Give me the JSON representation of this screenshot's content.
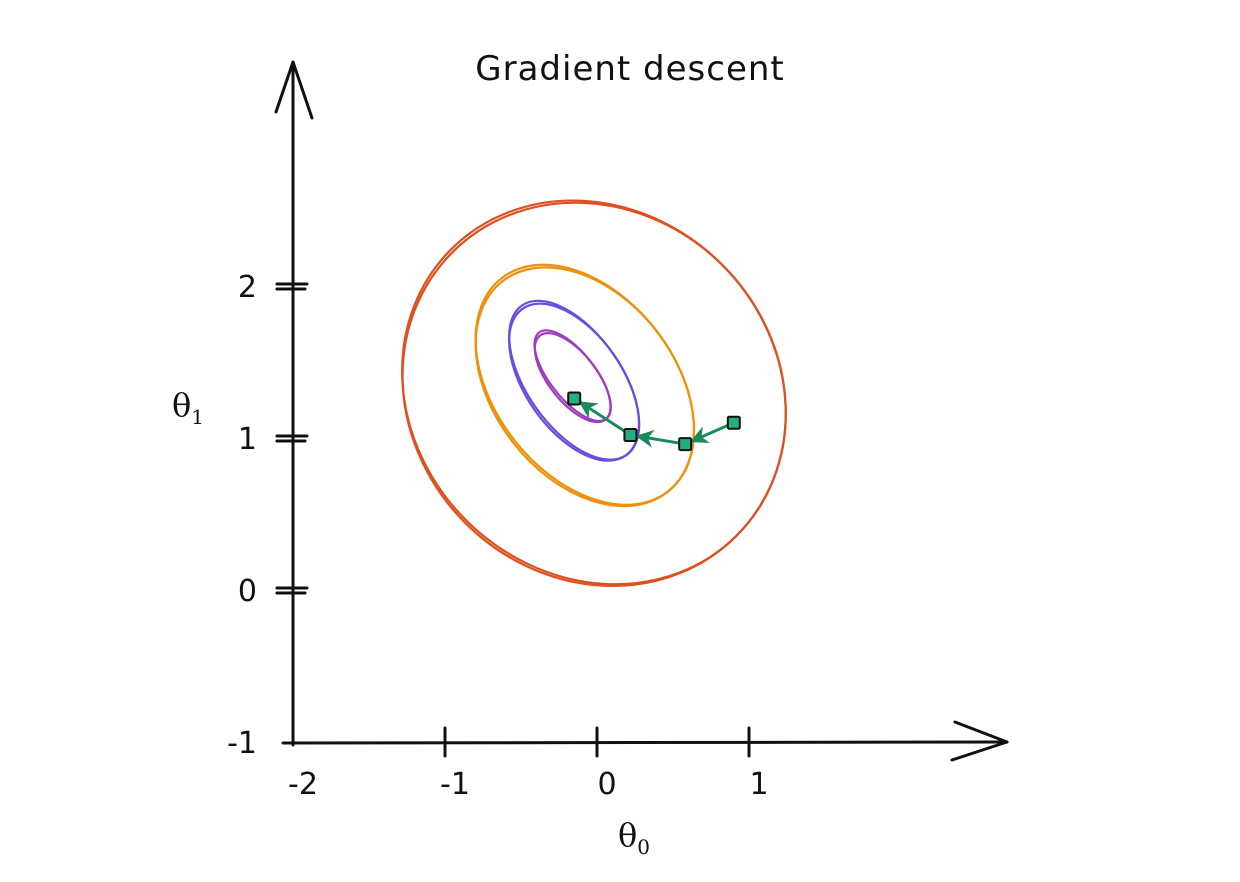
{
  "chart_data": {
    "type": "line",
    "title": "Gradient descent",
    "xlabel": "θ",
    "xlabel_sub": "0",
    "ylabel": "θ",
    "ylabel_sub": "1",
    "xlim": [
      -2,
      2.7
    ],
    "ylim": [
      -1,
      3.3
    ],
    "x_ticks": [
      {
        "value": -2,
        "label": "-2"
      },
      {
        "value": -1,
        "label": "-1"
      },
      {
        "value": 0,
        "label": "0"
      },
      {
        "value": 1,
        "label": "1"
      }
    ],
    "y_ticks": [
      {
        "value": -1,
        "label": "-1"
      },
      {
        "value": 0,
        "label": "0"
      },
      {
        "value": 1,
        "label": "1"
      },
      {
        "value": 2,
        "label": "2"
      }
    ],
    "contours": [
      {
        "name": "level-4",
        "color": "#e0501e",
        "center": [
          -0.02,
          1.3
        ],
        "rx": 1.33,
        "ry": 1.19,
        "rotation_deg": 45
      },
      {
        "name": "level-3",
        "color": "#f0900a",
        "center": [
          -0.08,
          1.35
        ],
        "rx": 0.89,
        "ry": 0.59,
        "rotation_deg": 52
      },
      {
        "name": "level-2",
        "color": "#6a4ce0",
        "center": [
          -0.15,
          1.38
        ],
        "rx": 0.6,
        "ry": 0.31,
        "rotation_deg": 55
      },
      {
        "name": "level-1",
        "color": "#a03cc0",
        "center": [
          -0.16,
          1.41
        ],
        "rx": 0.36,
        "ry": 0.15,
        "rotation_deg": 52
      }
    ],
    "series": [
      {
        "x": [
          0.9,
          0.58,
          0.22,
          -0.15
        ],
        "y": [
          1.1,
          0.96,
          1.02,
          1.26
        ],
        "color": "#20b07a"
      }
    ]
  }
}
